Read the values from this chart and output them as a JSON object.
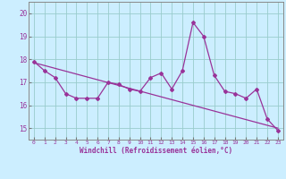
{
  "xlabel": "Windchill (Refroidissement éolien,°C)",
  "xlim": [
    -0.5,
    23.5
  ],
  "ylim": [
    14.5,
    20.5
  ],
  "yticks": [
    15,
    16,
    17,
    18,
    19,
    20
  ],
  "xticks": [
    0,
    1,
    2,
    3,
    4,
    5,
    6,
    7,
    8,
    9,
    10,
    11,
    12,
    13,
    14,
    15,
    16,
    17,
    18,
    19,
    20,
    21,
    22,
    23
  ],
  "bg_color": "#cceeff",
  "line_color": "#993399",
  "grid_color": "#99cccc",
  "line1_x": [
    0,
    1,
    2,
    3,
    4,
    5,
    6,
    7,
    8,
    9,
    10,
    11,
    12,
    13,
    14,
    15,
    16,
    17,
    18,
    19,
    20,
    21,
    22,
    23
  ],
  "line1_y": [
    17.9,
    17.5,
    17.2,
    16.5,
    16.3,
    16.3,
    16.3,
    17.0,
    16.9,
    16.7,
    16.6,
    17.2,
    17.4,
    16.7,
    17.5,
    19.6,
    19.0,
    17.3,
    16.6,
    16.5,
    16.3,
    16.7,
    15.4,
    14.9
  ],
  "trend_x": [
    0,
    23
  ],
  "trend_y": [
    17.85,
    15.0
  ]
}
